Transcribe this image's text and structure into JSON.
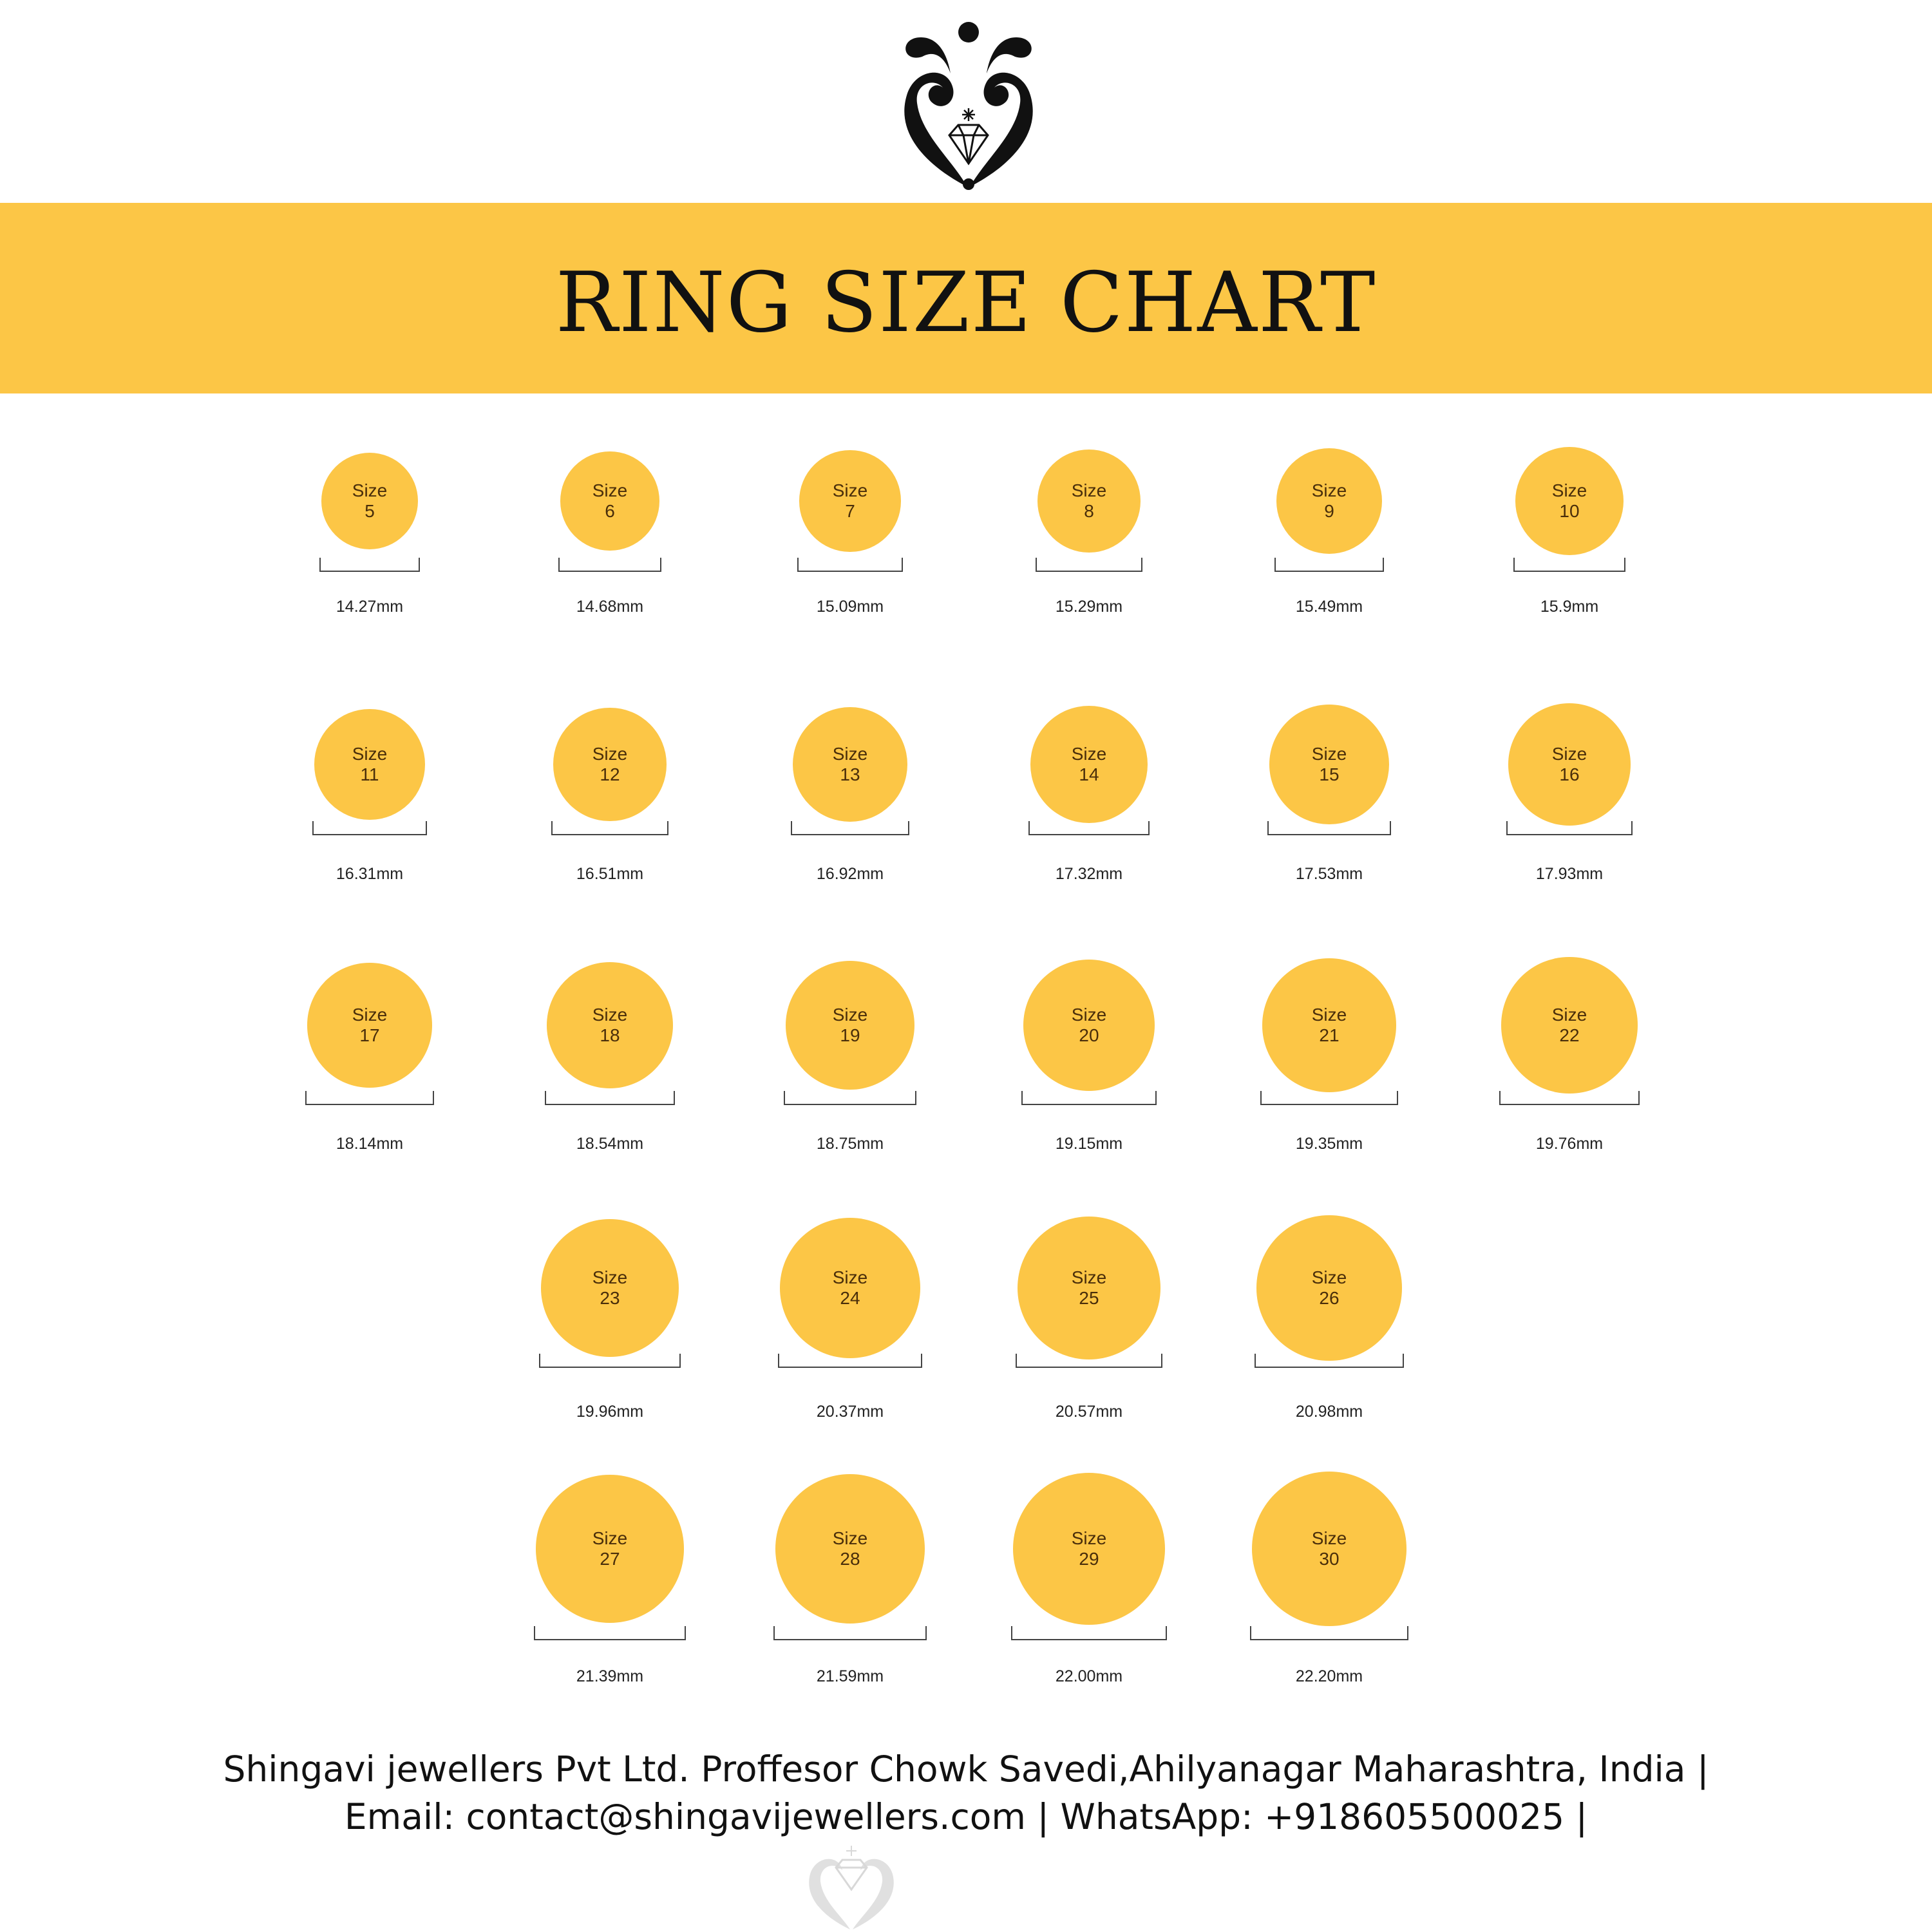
{
  "header": {
    "title": "RING SIZE CHART"
  },
  "colors": {
    "accent": "#fcc646",
    "circle_text": "#4a2e0a",
    "logo": "#111111"
  },
  "icons": {
    "logo": "shingavi-logo-icon",
    "diamond": "diamond-icon",
    "watermark": "watermark-logo-icon"
  },
  "rings": [
    {
      "label": "Size",
      "size": "5",
      "measure": "14.27mm"
    },
    {
      "label": "Size",
      "size": "6",
      "measure": "14.68mm"
    },
    {
      "label": "Size",
      "size": "7",
      "measure": "15.09mm"
    },
    {
      "label": "Size",
      "size": "8",
      "measure": "15.29mm"
    },
    {
      "label": "Size",
      "size": "9",
      "measure": "15.49mm"
    },
    {
      "label": "Size",
      "size": "10",
      "measure": "15.9mm"
    },
    {
      "label": "Size",
      "size": "11",
      "measure": "16.31mm"
    },
    {
      "label": "Size",
      "size": "12",
      "measure": "16.51mm"
    },
    {
      "label": "Size",
      "size": "13",
      "measure": "16.92mm"
    },
    {
      "label": "Size",
      "size": "14",
      "measure": "17.32mm"
    },
    {
      "label": "Size",
      "size": "15",
      "measure": "17.53mm"
    },
    {
      "label": "Size",
      "size": "16",
      "measure": "17.93mm"
    },
    {
      "label": "Size",
      "size": "17",
      "measure": "18.14mm"
    },
    {
      "label": "Size",
      "size": "18",
      "measure": "18.54mm"
    },
    {
      "label": "Size",
      "size": "19",
      "measure": "18.75mm"
    },
    {
      "label": "Size",
      "size": "20",
      "measure": "19.15mm"
    },
    {
      "label": "Size",
      "size": "21",
      "measure": "19.35mm"
    },
    {
      "label": "Size",
      "size": "22",
      "measure": "19.76mm"
    },
    {
      "label": "Size",
      "size": "23",
      "measure": "19.96mm"
    },
    {
      "label": "Size",
      "size": "24",
      "measure": "20.37mm"
    },
    {
      "label": "Size",
      "size": "25",
      "measure": "20.57mm"
    },
    {
      "label": "Size",
      "size": "26",
      "measure": "20.98mm"
    },
    {
      "label": "Size",
      "size": "27",
      "measure": "21.39mm"
    },
    {
      "label": "Size",
      "size": "28",
      "measure": "21.59mm"
    },
    {
      "label": "Size",
      "size": "29",
      "measure": "22.00mm"
    },
    {
      "label": "Size",
      "size": "30",
      "measure": "22.20mm"
    }
  ],
  "footer": {
    "line1": "Shingavi jewellers Pvt Ltd. Proffesor Chowk Savedi,Ahilyanagar Maharashtra, India |",
    "line2": "Email: contact@shingavijewellers.com | WhatsApp: +918605500025 |"
  }
}
